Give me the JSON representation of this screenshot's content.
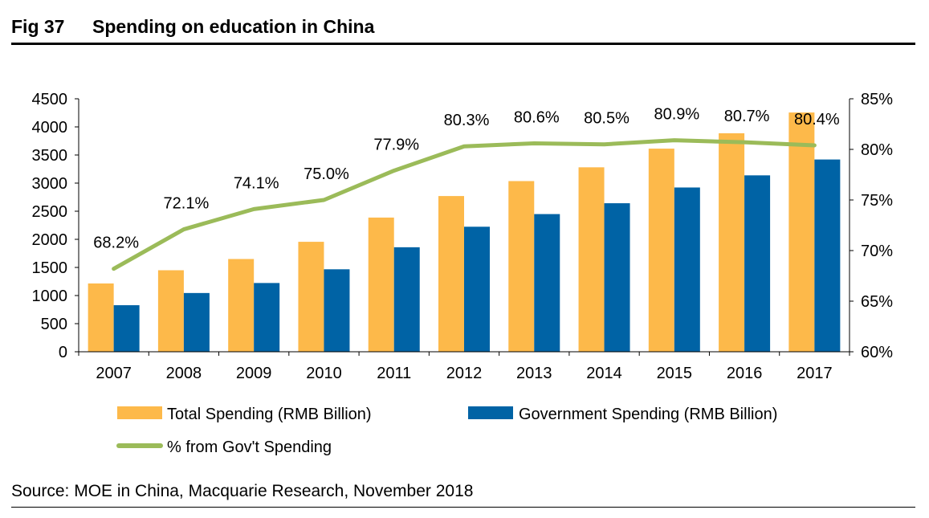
{
  "figure": {
    "number": "Fig 37",
    "title": "Spending on education in China",
    "source": "Source: MOE in China, Macquarie Research, November 2018"
  },
  "colors": {
    "total": "#FDB94A",
    "government": "#0063A5",
    "line": "#9BBB59",
    "axis": "#000000"
  },
  "chart_data": {
    "type": "bar+line",
    "title": "Spending on education in China",
    "categories": [
      "2007",
      "2008",
      "2009",
      "2010",
      "2011",
      "2012",
      "2013",
      "2014",
      "2015",
      "2016",
      "2017"
    ],
    "series": [
      {
        "name": "Total Spending (RMB Billion)",
        "type": "bar",
        "axis": "left",
        "values": [
          1215,
          1450,
          1650,
          1956,
          2387,
          2770,
          3036,
          3281,
          3613,
          3887,
          4256
        ]
      },
      {
        "name": "Government Spending (RMB Billion)",
        "type": "bar",
        "axis": "left",
        "values": [
          828,
          1045,
          1223,
          1467,
          1859,
          2224,
          2449,
          2642,
          2922,
          3138,
          3420
        ]
      },
      {
        "name": "% from Gov't Spending",
        "type": "line",
        "axis": "right",
        "values": [
          68.2,
          72.1,
          74.1,
          75.0,
          77.9,
          80.3,
          80.6,
          80.5,
          80.9,
          80.7,
          80.4
        ],
        "labels": [
          "68.2%",
          "72.1%",
          "74.1%",
          "75.0%",
          "77.9%",
          "80.3%",
          "80.6%",
          "80.5%",
          "80.9%",
          "80.7%",
          "80.4%"
        ]
      }
    ],
    "y_left": {
      "min": 0,
      "max": 4500,
      "step": 500,
      "ticks": [
        "0",
        "500",
        "1000",
        "1500",
        "2000",
        "2500",
        "3000",
        "3500",
        "4000",
        "4500"
      ]
    },
    "y_right": {
      "min": 60,
      "max": 85,
      "step": 5,
      "ticks": [
        "60%",
        "65%",
        "70%",
        "75%",
        "80%",
        "85%"
      ]
    },
    "grid": false,
    "legend_position": "bottom"
  }
}
